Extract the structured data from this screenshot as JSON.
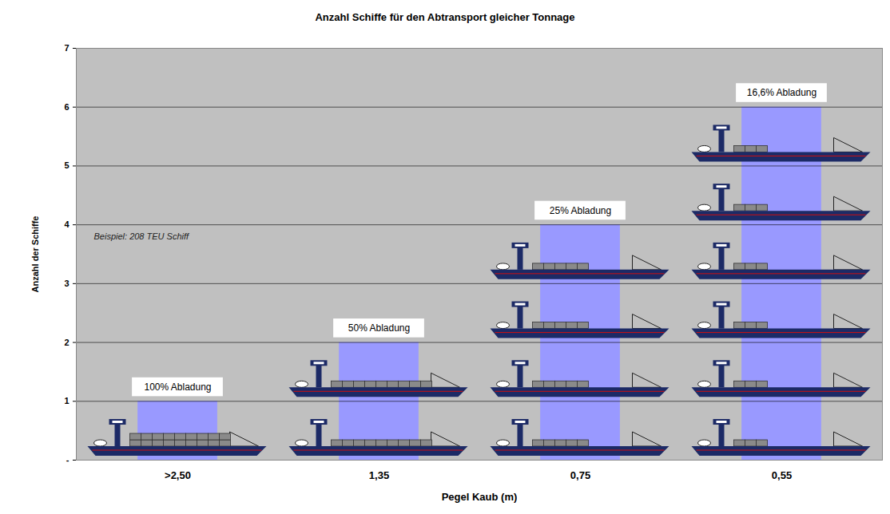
{
  "chart_data": {
    "type": "bar",
    "title": "Anzahl Schiffe für den Abtransport gleicher Tonnage",
    "x_label": "Pegel Kaub (m)",
    "y_label": "Anzahl der Schiffe",
    "categories": [
      ">2,50",
      "1,35",
      "0,75",
      "0,55"
    ],
    "values": [
      1,
      2,
      4,
      6
    ],
    "color": "#9999ff",
    "load_percent": [
      100,
      50,
      25,
      16.6
    ],
    "load_labels": [
      "100% Abladung",
      "50% Abladung",
      "25% Abladung",
      "16,6% Abladung"
    ],
    "annotation": "Beispiel: 208 TEU Schiff",
    "ylim": [
      0,
      7
    ],
    "yticks": [
      {
        "value": 0,
        "label": "-"
      },
      1,
      2,
      3,
      4,
      5,
      6,
      7
    ],
    "grid": true
  }
}
